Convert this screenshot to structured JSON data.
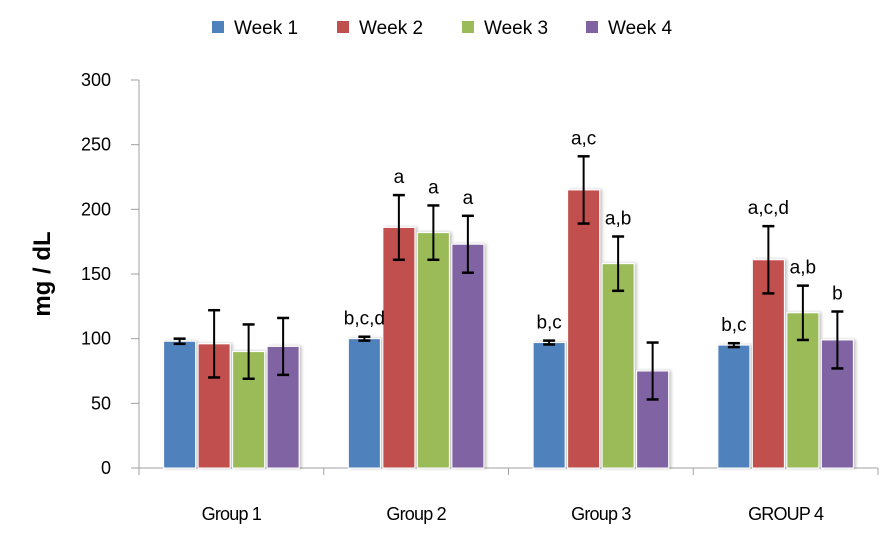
{
  "chart_data": {
    "type": "bar",
    "title": "",
    "xlabel": "",
    "ylabel": "mg / dL",
    "ylim": [
      0,
      300
    ],
    "yticks": [
      0,
      50,
      100,
      150,
      200,
      250,
      300
    ],
    "ytick_labels": [
      "0",
      "50",
      "100",
      "150",
      "200",
      "250",
      "300"
    ],
    "grid": false,
    "legend_position": "top",
    "categories": [
      "Group 1",
      "Group 2",
      "Group 3",
      "GROUP 4"
    ],
    "series": [
      {
        "name": "Week 1",
        "color": "#4F81BD",
        "values": [
          98,
          100,
          97,
          95
        ],
        "errors": [
          2,
          1.5,
          1.5,
          1.5
        ],
        "labels": [
          "",
          "b,c,d",
          "b,c",
          "b,c"
        ]
      },
      {
        "name": "Week 2",
        "color": "#C0504D",
        "values": [
          96,
          186,
          215,
          161
        ],
        "errors": [
          26,
          25,
          26,
          26
        ],
        "labels": [
          "",
          "a",
          "a,c",
          "a,c,d"
        ]
      },
      {
        "name": "Week 3",
        "color": "#9BBB59",
        "values": [
          90,
          182,
          158,
          120
        ],
        "errors": [
          21,
          21,
          21,
          21
        ],
        "labels": [
          "",
          "a",
          "a,b",
          "a,b"
        ]
      },
      {
        "name": "Week 4",
        "color": "#8064A2",
        "values": [
          94,
          173,
          75,
          99
        ],
        "errors": [
          22,
          22,
          22,
          22
        ],
        "labels": [
          "",
          "a",
          "",
          "b"
        ]
      }
    ]
  }
}
